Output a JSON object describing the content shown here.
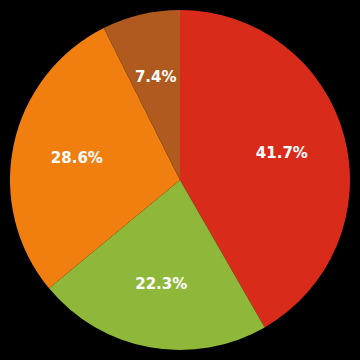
{
  "chart_data": {
    "type": "pie",
    "values": [
      41.7,
      22.3,
      28.6,
      7.4
    ],
    "value_labels": [
      "41.7%",
      "22.3%",
      "28.6%",
      "7.4%"
    ],
    "colors": [
      "#d92b1a",
      "#8fb83b",
      "#f07f10",
      "#b05a20"
    ],
    "data_labels": true
  }
}
